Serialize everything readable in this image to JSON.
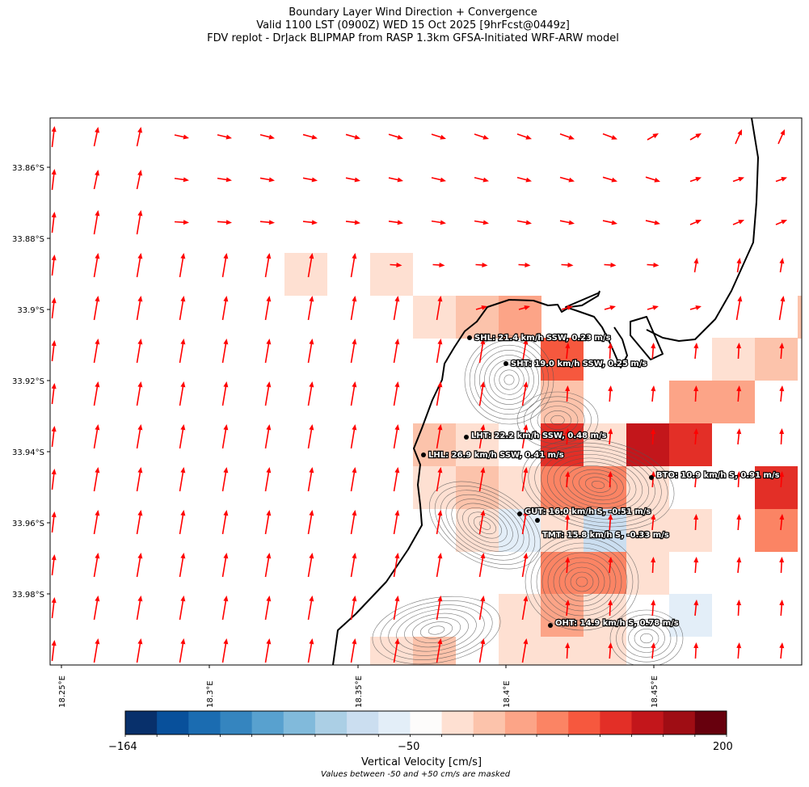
{
  "title": {
    "line1": "Boundary Layer Wind Direction + Convergence",
    "line2": "Valid 1100 LST (0900Z) WED 15 Oct 2025 [9hrFcst@0449z]",
    "line3": "FDV replot - DrJack BLIPMAP from RASP 1.3km GFSA-Initiated WRF-ARW model"
  },
  "axes": {
    "lat_ticks": [
      "33.86°S",
      "33.88°S",
      "33.9°S",
      "33.92°S",
      "33.94°S",
      "33.96°S",
      "33.98°S"
    ],
    "lon_ticks": [
      "18.25°E",
      "18.3°E",
      "18.35°E",
      "18.4°E",
      "18.45°E"
    ]
  },
  "stations": [
    {
      "label": "SHL: 21.4 km/h SSW, 0.23 m/s"
    },
    {
      "label": "SHT: 19.0 km/h SSW, 0.25 m/s"
    },
    {
      "label": "LHT: 22.2 km/h SSW, 0.48 m/s"
    },
    {
      "label": "LHL: 26.9 km/h SSW, 0.41 m/s"
    },
    {
      "label": "BTO: 10.9 km/h S, 0.91 m/s"
    },
    {
      "label": "GUT: 16.0 km/h S, -0.51 m/s"
    },
    {
      "label": "TMT: 15.8 km/h S, -0.33 m/s"
    },
    {
      "label": "OHT: 14.9 km/h S, 0.78 m/s"
    }
  ],
  "colorbar": {
    "min_label": "−164",
    "mid_label": "−50",
    "max_label": "200",
    "title": "Vertical Velocity [cm/s]",
    "note": "Values between -50 and +50 cm/s are masked",
    "colors": [
      "#08306b",
      "#08509b",
      "#1b6cb1",
      "#3585bf",
      "#58a1cf",
      "#81badb",
      "#abcfe5",
      "#cbdef0",
      "#e3eef8",
      "#fdfcfb",
      "#fee0d2",
      "#fcc3ab",
      "#fca487",
      "#fb8464",
      "#f6583e",
      "#e32f27",
      "#c3161b",
      "#9f0d14",
      "#67000d"
    ]
  },
  "colors": {
    "wind_arrow": "#ff0000",
    "coastline": "#000000",
    "terrain_contour": "#555555"
  }
}
